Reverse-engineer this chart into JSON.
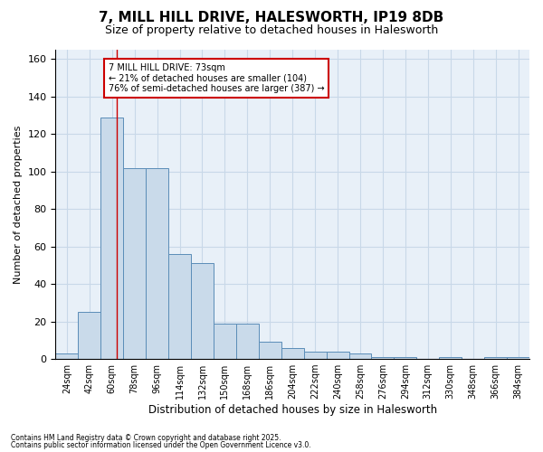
{
  "title_line1": "7, MILL HILL DRIVE, HALESWORTH, IP19 8DB",
  "title_line2": "Size of property relative to detached houses in Halesworth",
  "xlabel": "Distribution of detached houses by size in Halesworth",
  "ylabel": "Number of detached properties",
  "bins": [
    24,
    42,
    60,
    78,
    96,
    114,
    132,
    150,
    168,
    186,
    204,
    222,
    240,
    258,
    276,
    294,
    312,
    330,
    348,
    366,
    384
  ],
  "counts": [
    3,
    25,
    129,
    102,
    102,
    56,
    51,
    19,
    19,
    9,
    6,
    4,
    4,
    3,
    1,
    1,
    0,
    1,
    0,
    1,
    1
  ],
  "bar_color": "#c9daea",
  "bar_edge_color": "#5b8db8",
  "grid_color": "#c8d8e8",
  "property_size": 73,
  "red_line_color": "#cc0000",
  "annotation_line1": "7 MILL HILL DRIVE: 73sqm",
  "annotation_line2": "← 21% of detached houses are smaller (104)",
  "annotation_line3": "76% of semi-detached houses are larger (387) →",
  "annotation_box_color": "white",
  "annotation_box_edge": "#cc0000",
  "ylim": [
    0,
    165
  ],
  "yticks": [
    0,
    20,
    40,
    60,
    80,
    100,
    120,
    140,
    160
  ],
  "footnote1": "Contains HM Land Registry data © Crown copyright and database right 2025.",
  "footnote2": "Contains public sector information licensed under the Open Government Licence v3.0.",
  "bg_color": "#ffffff",
  "plot_bg_color": "#e8f0f8"
}
